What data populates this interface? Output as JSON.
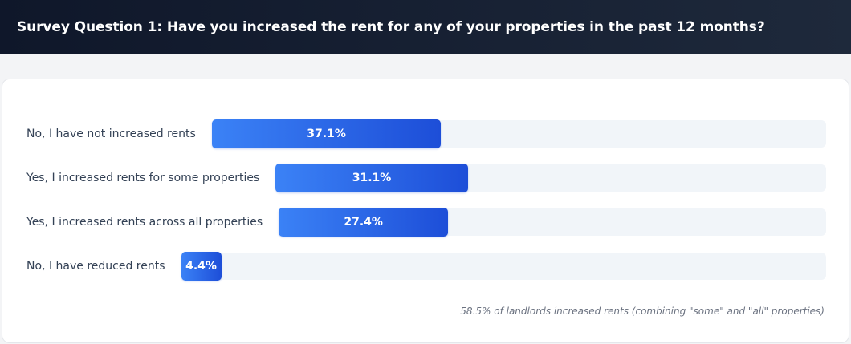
{
  "title": "Survey Question 1: Have you increased the rent for any of your properties in the past 12 months?",
  "footnote": "58.5% of landlords increased rents (combining \"some\" and \"all\" properties)",
  "chart_data": {
    "type": "bar",
    "orientation": "horizontal",
    "categories": [
      "No, I have not increased rents",
      "Yes, I increased rents for some properties",
      "Yes, I increased rents across all properties",
      "No, I have reduced rents"
    ],
    "values": [
      37.1,
      31.1,
      27.4,
      4.4
    ],
    "value_labels": [
      "37.1%",
      "31.1%",
      "27.4%",
      "4.4%"
    ],
    "unit": "%",
    "xlim": [
      0,
      100
    ],
    "colors": {
      "bar_start": "#3b82f6",
      "bar_end": "#1d4ed8",
      "track": "#f1f5f9"
    }
  }
}
